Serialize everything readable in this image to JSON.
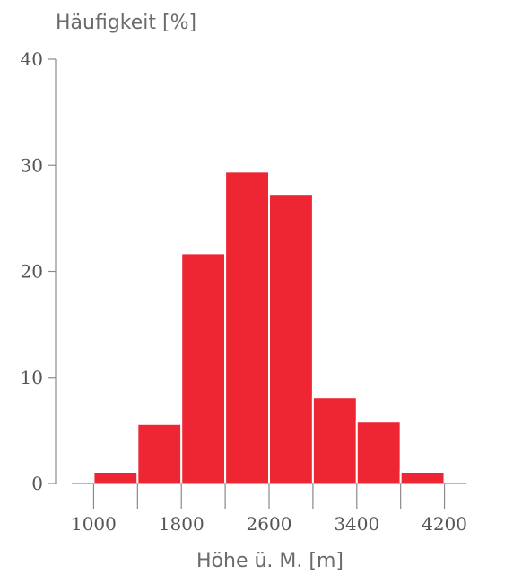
{
  "chart_data": {
    "type": "bar",
    "title": "",
    "ylabel": "Häufigkeit [%]",
    "xlabel": "Höhe ü. M. [m]",
    "ylim": [
      0,
      40
    ],
    "xlim": [
      800,
      4400
    ],
    "yticks": [
      0,
      10,
      20,
      30,
      40
    ],
    "xticks": [
      1000,
      1800,
      2600,
      3400,
      4200
    ],
    "bin_edges": [
      1000,
      1400,
      1800,
      2200,
      2600,
      3000,
      3400,
      3800,
      4200
    ],
    "values": [
      1.1,
      5.6,
      21.7,
      29.4,
      27.3,
      8.1,
      5.9,
      1.1
    ],
    "bar_color": "#ee2533",
    "grid": false,
    "legend": "none"
  }
}
